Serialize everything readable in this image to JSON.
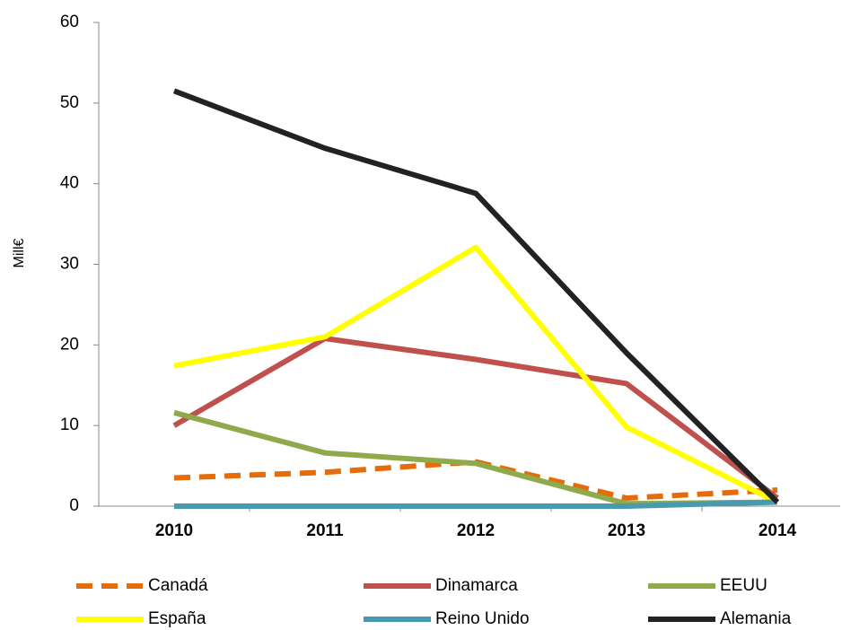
{
  "chart_data": {
    "type": "line",
    "ylabel": "Mill€",
    "categories": [
      "2010",
      "2011",
      "2012",
      "2013",
      "2014"
    ],
    "ylim": [
      0,
      60
    ],
    "yticks": [
      0,
      10,
      20,
      30,
      40,
      50,
      60
    ],
    "grid": false,
    "legend": "bottom",
    "series": [
      {
        "name": "Canadá",
        "color": "#e46c0a",
        "dashed": true,
        "values": [
          3.5,
          4.2,
          5.5,
          1.0,
          2.0
        ]
      },
      {
        "name": "Dinamarca",
        "color": "#c0504d",
        "values": [
          10,
          20.8,
          18.2,
          15.2,
          1.0
        ]
      },
      {
        "name": "EEUU",
        "color": "#8faa4b",
        "values": [
          11.6,
          6.6,
          5.3,
          0.3,
          0.5
        ]
      },
      {
        "name": "España",
        "color": "#ffff00",
        "values": [
          17.4,
          21,
          32.1,
          9.8,
          0.5
        ]
      },
      {
        "name": "Reino Unido",
        "color": "#4a9aaf",
        "values": [
          0,
          0,
          0,
          0,
          0.5
        ]
      },
      {
        "name": "Alemania",
        "color": "#222222",
        "values": [
          51.5,
          44.4,
          38.8,
          19,
          0.5
        ]
      }
    ]
  }
}
